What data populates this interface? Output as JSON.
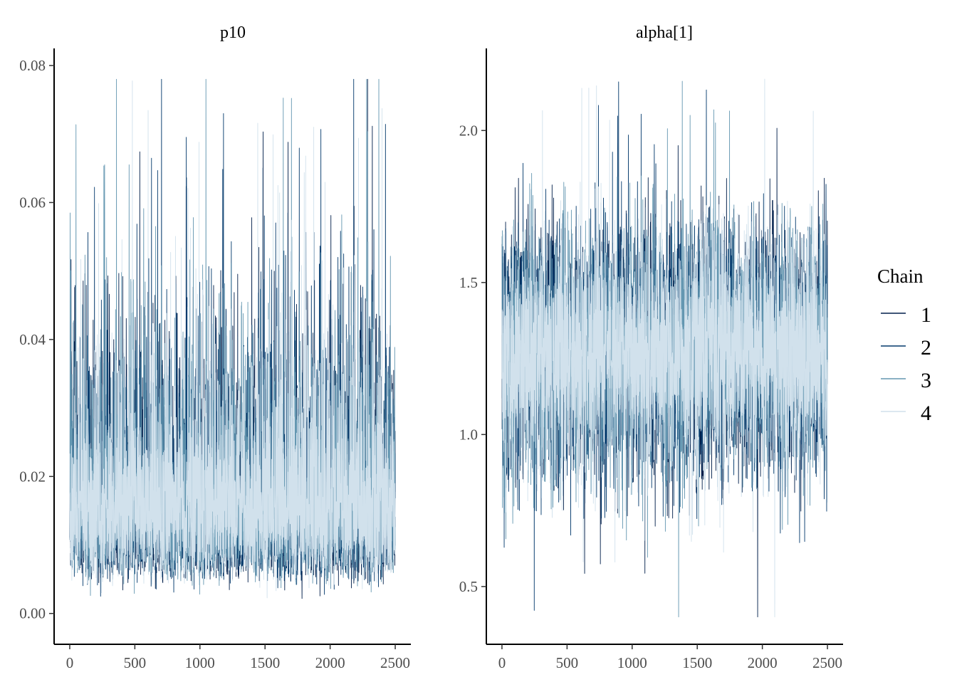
{
  "chart_data": [
    {
      "type": "line",
      "title": "p10",
      "xlabel": "",
      "ylabel": "",
      "xlim": [
        -120,
        2620
      ],
      "ylim": [
        -0.0045,
        0.0825
      ],
      "x_ticks": [
        0,
        500,
        1000,
        1500,
        2000,
        2500
      ],
      "x_tick_labels": [
        "0",
        "500",
        "1000",
        "1500",
        "2000",
        "2500"
      ],
      "y_ticks": [
        0.0,
        0.02,
        0.04,
        0.06,
        0.08
      ],
      "y_tick_labels": [
        "0.00",
        "0.02",
        "0.04",
        "0.06",
        "0.08"
      ],
      "n_iterations": 2500,
      "series_summary": {
        "center": 0.018,
        "typical_low": 0.005,
        "typical_high": 0.045,
        "max": 0.078,
        "min": 0.001
      },
      "series": [
        {
          "name": "1",
          "color": "#011f4b"
        },
        {
          "name": "2",
          "color": "#03396c"
        },
        {
          "name": "3",
          "color": "#6497b1"
        },
        {
          "name": "4",
          "color": "#d1e1ec"
        }
      ]
    },
    {
      "type": "line",
      "title": "alpha[1]",
      "xlabel": "",
      "ylabel": "",
      "xlim": [
        -120,
        2620
      ],
      "ylim": [
        0.31,
        2.27
      ],
      "x_ticks": [
        0,
        500,
        1000,
        1500,
        2000,
        2500
      ],
      "x_tick_labels": [
        "0",
        "500",
        "1000",
        "1500",
        "2000",
        "2500"
      ],
      "y_ticks": [
        0.5,
        1.0,
        1.5,
        2.0
      ],
      "y_tick_labels": [
        "0.5",
        "1.0",
        "1.5",
        "2.0"
      ],
      "n_iterations": 2500,
      "series_summary": {
        "center": 1.27,
        "typical_low": 0.8,
        "typical_high": 1.75,
        "max": 2.18,
        "min": 0.4
      },
      "series": [
        {
          "name": "1",
          "color": "#011f4b"
        },
        {
          "name": "2",
          "color": "#03396c"
        },
        {
          "name": "3",
          "color": "#6497b1"
        },
        {
          "name": "4",
          "color": "#d1e1ec"
        }
      ]
    }
  ],
  "legend": {
    "title": "Chain",
    "placement": "right",
    "items": [
      {
        "label": "1",
        "color": "#011f4b"
      },
      {
        "label": "2",
        "color": "#03396c"
      },
      {
        "label": "3",
        "color": "#6497b1"
      },
      {
        "label": "4",
        "color": "#d1e1ec"
      }
    ]
  }
}
